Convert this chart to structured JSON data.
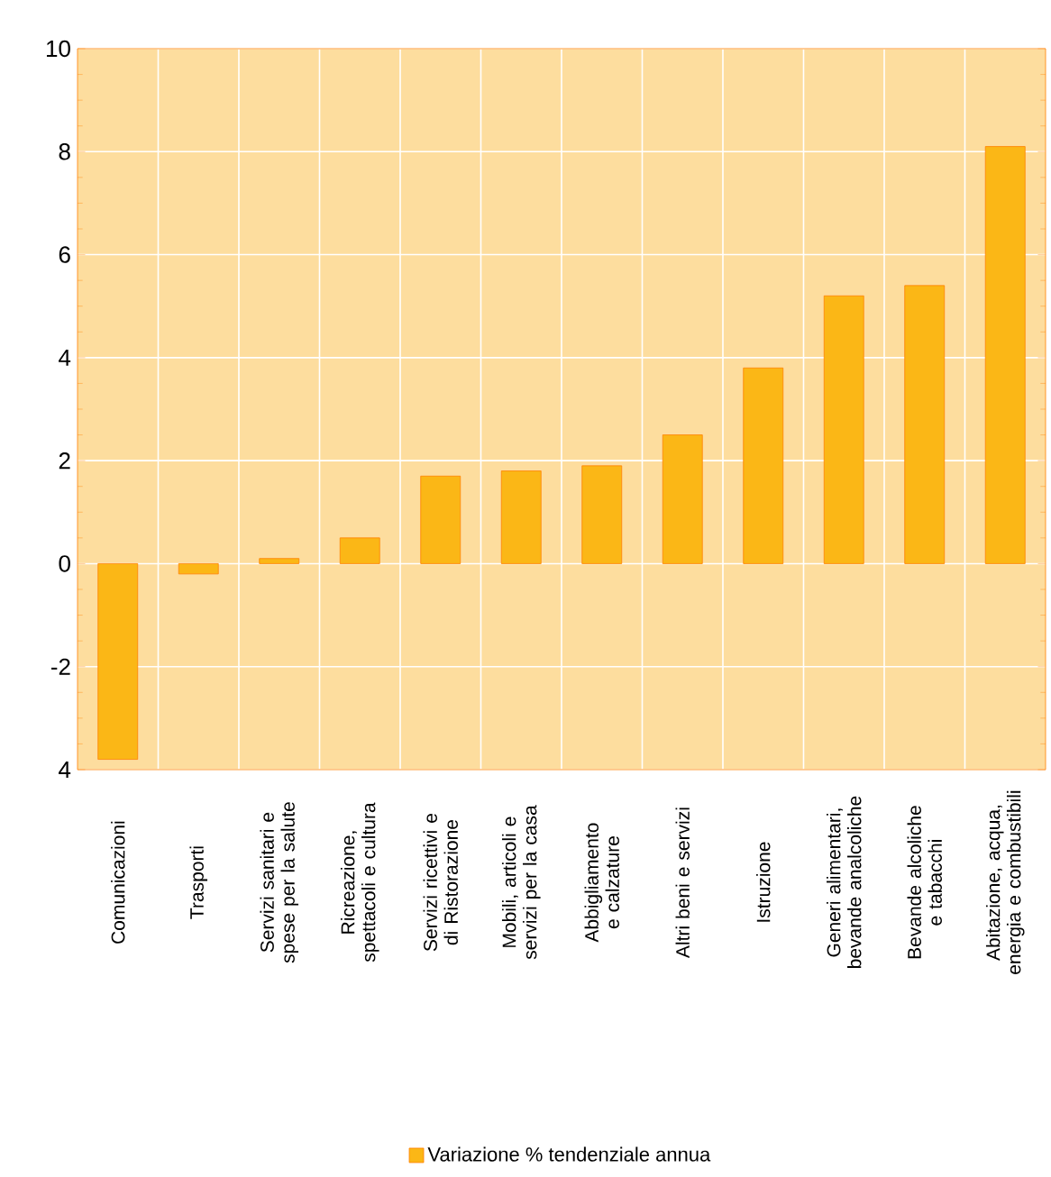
{
  "chart_data": {
    "type": "bar",
    "categories": [
      "Comunicazioni",
      "Trasporti",
      "Servizi sanitari e spese per la salute",
      "Ricreazione, spettacoli e cultura",
      "Servizi ricettivi e di Ristorazione",
      "Mobili, articoli e servizi per la casa",
      "Abbigliamento e calzature",
      "Altri beni e servizi",
      "Istruzione",
      "Generi alimentari, bevande analcoliche",
      "Bevande alcoliche e tabacchi",
      "Abitazione, acqua, energia e combustibili"
    ],
    "series": [
      {
        "name": "Variazione % tendenziale annua",
        "color": "#fbb716",
        "values": [
          -3.8,
          -0.2,
          0.1,
          0.5,
          1.7,
          1.8,
          1.9,
          2.5,
          3.8,
          5.2,
          5.4,
          8.1
        ]
      }
    ],
    "ylim": [
      -4,
      10
    ],
    "yticks": [
      {
        "value": -4,
        "label": "4"
      },
      -2,
      0,
      2,
      4,
      6,
      8,
      10
    ],
    "grid": true,
    "legend": "bottom"
  }
}
